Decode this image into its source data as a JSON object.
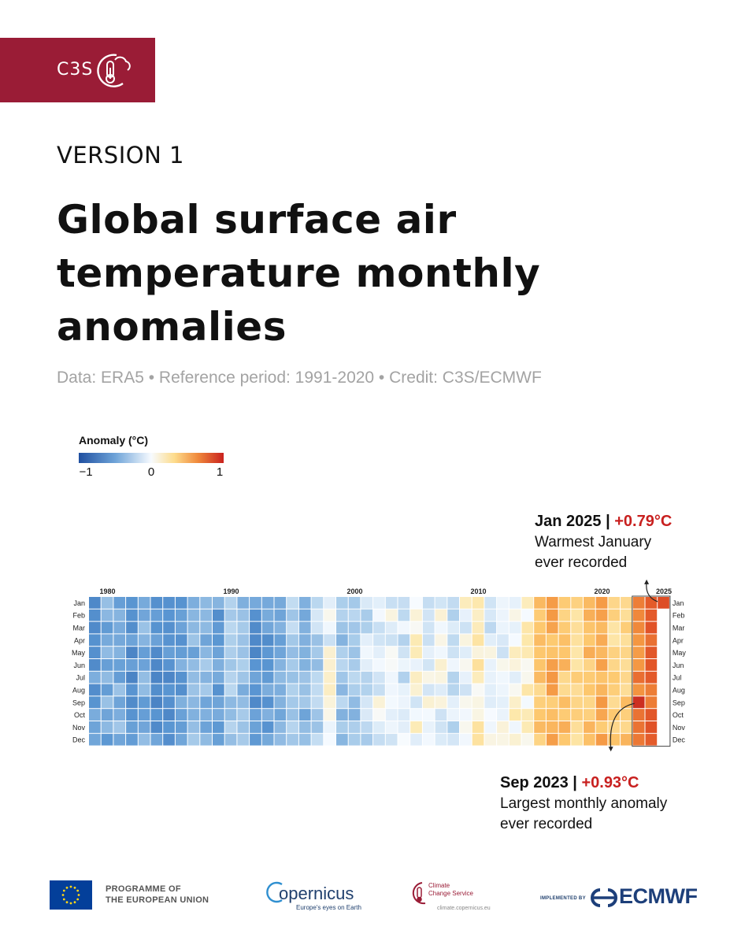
{
  "header": {
    "brand": "C3S",
    "version": "VERSION 1",
    "title": "Global surface air temperature monthly anomalies",
    "subtitle": "Data: ERA5 • Reference period: 1991-2020 • Credit: C3S/ECMWF"
  },
  "colors": {
    "brand": "#9a1c36",
    "highlight": "#c8201f",
    "cold": "#1f4fa0",
    "neutral": "#f7fbff",
    "warm": "#c9211e"
  },
  "legend": {
    "title": "Anomaly (°C)",
    "ticks": [
      {
        "value": -1,
        "label": "−1"
      },
      {
        "value": 0,
        "label": "0"
      },
      {
        "value": 1,
        "label": "1"
      }
    ]
  },
  "chart_data": {
    "type": "heatmap",
    "x_label_years": [
      "1980",
      "1990",
      "2000",
      "2010",
      "2020",
      "2025"
    ],
    "year_start": 1979,
    "year_end": 2025,
    "months": [
      "Jan",
      "Feb",
      "Mar",
      "Apr",
      "May",
      "Jun",
      "Jul",
      "Aug",
      "Sep",
      "Oct",
      "Nov",
      "Dec"
    ],
    "color_range": [
      -1,
      1
    ],
    "yearly_mean_anomaly": [
      -0.48,
      -0.38,
      -0.36,
      -0.52,
      -0.37,
      -0.53,
      -0.56,
      -0.45,
      -0.34,
      -0.33,
      -0.45,
      -0.26,
      -0.3,
      -0.51,
      -0.47,
      -0.39,
      -0.24,
      -0.35,
      -0.2,
      -0.02,
      -0.27,
      -0.25,
      -0.12,
      -0.04,
      -0.05,
      -0.1,
      0.0,
      -0.03,
      -0.03,
      -0.13,
      -0.01,
      0.07,
      -0.06,
      -0.01,
      0.02,
      0.08,
      0.25,
      0.37,
      0.29,
      0.19,
      0.33,
      0.37,
      0.23,
      0.27,
      0.54,
      0.66,
      0.64
    ],
    "highlight_box_years": [
      2023,
      2025
    ],
    "highlights": [
      {
        "year": 2025,
        "month": "Jan",
        "value": 0.79
      },
      {
        "year": 2023,
        "month": "Sep",
        "value": 0.93
      }
    ]
  },
  "annotations": {
    "jan2025": {
      "date": "Jan 2025",
      "sep": " | ",
      "value": "+0.79°C",
      "line1": "Warmest January",
      "line2": "ever recorded"
    },
    "sep2023": {
      "date": "Sep 2023",
      "sep": " | ",
      "value": "+0.93°C",
      "line1": "Largest monthly anomaly",
      "line2": "ever recorded"
    }
  },
  "footer": {
    "eu_line1": "PROGRAMME OF",
    "eu_line2": "THE EUROPEAN UNION",
    "copernicus_name": "opernicus",
    "copernicus_tagline": "Europe's eyes on Earth",
    "ccs_line1": "Climate",
    "ccs_line2": "Change Service",
    "ccs_url": "climate.copernicus.eu",
    "ecmwf_implemented": "IMPLEMENTED BY",
    "ecmwf_name": "ECMWF"
  }
}
